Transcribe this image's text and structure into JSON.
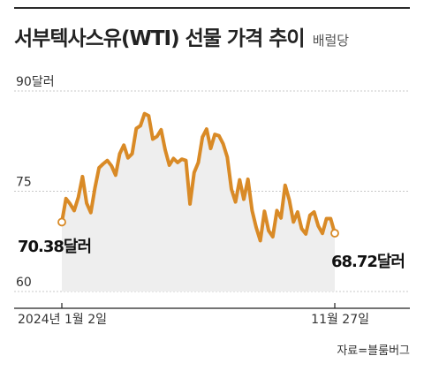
{
  "header": {
    "title": "서부텍사스유(WTI) 선물 가격 추이",
    "unit": "배럴당"
  },
  "source": "자료=블룸버그",
  "chart_data": {
    "type": "line",
    "ylim": [
      60,
      90
    ],
    "y_ticks": [
      {
        "value": 90,
        "label": "90달러"
      },
      {
        "value": 75,
        "label": "75"
      },
      {
        "value": 60,
        "label": "60"
      }
    ],
    "x_labels": {
      "start": "2024년 1월 2일",
      "end": "11월 27일"
    },
    "start_label": "70.38달러",
    "end_label": "68.72달러",
    "line_color": "#d98a26",
    "area_color": "#eeeeee",
    "series": [
      {
        "values": [
          70.38,
          73.9,
          73.1,
          72.1,
          74.1,
          77.2,
          73.2,
          71.8,
          75.5,
          78.5,
          79.1,
          79.6,
          78.8,
          77.4,
          80.6,
          81.9,
          80.0,
          80.6,
          84.4,
          84.8,
          86.6,
          86.3,
          82.8,
          83.2,
          84.2,
          81.2,
          78.9,
          79.9,
          79.3,
          79.8,
          79.6,
          73.1,
          77.8,
          79.3,
          83.1,
          84.3,
          81.4,
          83.5,
          83.3,
          82.1,
          80.1,
          75.3,
          73.4,
          76.7,
          73.8,
          76.8,
          72.1,
          69.6,
          67.6,
          72.0,
          69.1,
          68.2,
          72.1,
          71.0,
          75.9,
          73.7,
          70.4,
          71.9,
          69.4,
          68.6,
          71.4,
          71.9,
          69.8,
          68.7,
          70.9,
          70.9,
          68.72
        ]
      }
    ]
  }
}
